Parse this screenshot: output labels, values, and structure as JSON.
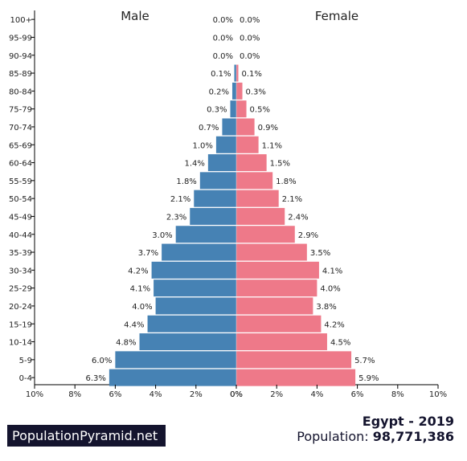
{
  "chart_data": {
    "type": "bar",
    "orientation": "horizontal-pyramid",
    "categories": [
      "100+",
      "95-99",
      "90-94",
      "85-89",
      "80-84",
      "75-79",
      "70-74",
      "65-69",
      "60-64",
      "55-59",
      "50-54",
      "45-49",
      "40-44",
      "35-39",
      "30-34",
      "25-29",
      "20-24",
      "15-19",
      "10-14",
      "5-9",
      "0-4"
    ],
    "series": [
      {
        "name": "Male",
        "color": "#4682b4",
        "values": [
          0.0,
          0.0,
          0.0,
          0.1,
          0.2,
          0.3,
          0.7,
          1.0,
          1.4,
          1.8,
          2.1,
          2.3,
          3.0,
          3.7,
          4.2,
          4.1,
          4.0,
          4.4,
          4.8,
          6.0,
          6.3
        ],
        "labels": [
          "0.0%",
          "0.0%",
          "0.0%",
          "0.1%",
          "0.2%",
          "0.3%",
          "0.7%",
          "1.0%",
          "1.4%",
          "1.8%",
          "2.1%",
          "2.3%",
          "3.0%",
          "3.7%",
          "4.2%",
          "4.1%",
          "4.0%",
          "4.4%",
          "4.8%",
          "6.0%",
          "6.3%"
        ]
      },
      {
        "name": "Female",
        "color": "#ee7989",
        "values": [
          0.0,
          0.0,
          0.0,
          0.1,
          0.3,
          0.5,
          0.9,
          1.1,
          1.5,
          1.8,
          2.1,
          2.4,
          2.9,
          3.5,
          4.1,
          4.0,
          3.8,
          4.2,
          4.5,
          5.7,
          5.9
        ],
        "labels": [
          "0.0%",
          "0.0%",
          "0.0%",
          "0.1%",
          "0.3%",
          "0.5%",
          "0.9%",
          "1.1%",
          "1.5%",
          "1.8%",
          "2.1%",
          "2.4%",
          "2.9%",
          "3.5%",
          "4.1%",
          "4.0%",
          "3.8%",
          "4.2%",
          "4.5%",
          "5.7%",
          "5.9%"
        ]
      }
    ],
    "xlim": [
      -10,
      10
    ],
    "xticks": [
      "10%",
      "8%",
      "6%",
      "4%",
      "2%",
      "0%",
      "0%",
      "2%",
      "4%",
      "6%",
      "8%",
      "10%"
    ],
    "grid": false
  },
  "footer": {
    "brand": "PopulationPyramid.net",
    "title": "Egypt - 2019",
    "population_label": "Population:",
    "population_value": "98,771,386"
  }
}
